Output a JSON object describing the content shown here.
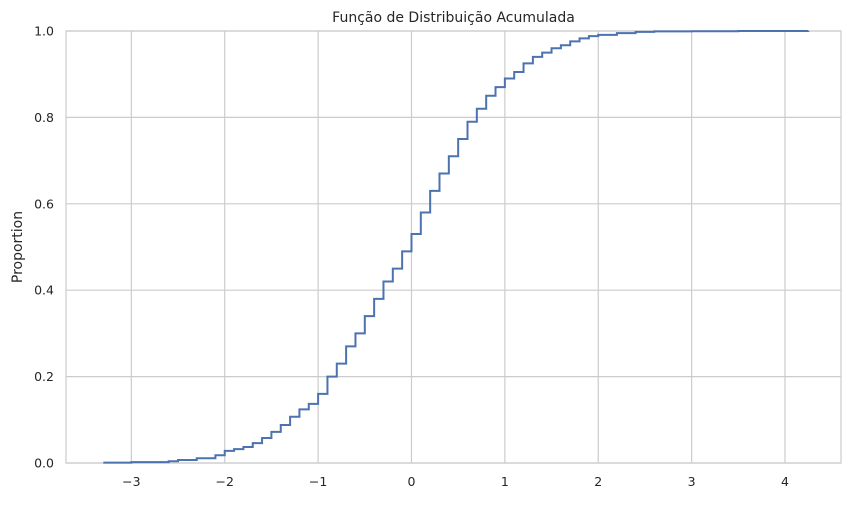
{
  "chart_data": {
    "type": "line",
    "title": "Função de Distribuição Acumulada",
    "xlabel": "",
    "ylabel": "Proportion",
    "xlim": [
      -3.7,
      4.6
    ],
    "ylim": [
      0.0,
      1.0
    ],
    "x_ticks": [
      -3,
      -2,
      -1,
      0,
      1,
      2,
      3,
      4
    ],
    "x_tick_labels": [
      "−3",
      "−2",
      "−1",
      "0",
      "1",
      "2",
      "3",
      "4"
    ],
    "y_ticks": [
      0.0,
      0.2,
      0.4,
      0.6,
      0.8,
      1.0
    ],
    "y_tick_labels": [
      "0.0",
      "0.2",
      "0.4",
      "0.6",
      "0.8",
      "1.0"
    ],
    "grid": true,
    "line_color": "#4c72b0",
    "series": [
      {
        "name": "",
        "x": [
          -3.3,
          -3.0,
          -2.6,
          -2.5,
          -2.3,
          -2.1,
          -2.0,
          -1.9,
          -1.8,
          -1.7,
          -1.6,
          -1.5,
          -1.4,
          -1.3,
          -1.2,
          -1.1,
          -1.0,
          -0.9,
          -0.8,
          -0.7,
          -0.6,
          -0.5,
          -0.4,
          -0.3,
          -0.2,
          -0.1,
          0.0,
          0.1,
          0.2,
          0.3,
          0.4,
          0.5,
          0.6,
          0.7,
          0.8,
          0.9,
          1.0,
          1.1,
          1.2,
          1.3,
          1.4,
          1.5,
          1.6,
          1.7,
          1.8,
          1.9,
          2.0,
          2.2,
          2.4,
          2.6,
          3.0,
          3.5,
          4.25
        ],
        "y": [
          0.001,
          0.002,
          0.004,
          0.007,
          0.011,
          0.018,
          0.028,
          0.032,
          0.037,
          0.046,
          0.058,
          0.072,
          0.088,
          0.107,
          0.124,
          0.137,
          0.16,
          0.2,
          0.23,
          0.27,
          0.3,
          0.34,
          0.38,
          0.42,
          0.45,
          0.49,
          0.53,
          0.58,
          0.63,
          0.67,
          0.71,
          0.75,
          0.79,
          0.82,
          0.85,
          0.87,
          0.89,
          0.905,
          0.925,
          0.94,
          0.95,
          0.96,
          0.967,
          0.976,
          0.983,
          0.988,
          0.991,
          0.995,
          0.998,
          0.999,
          0.9995,
          0.9999,
          1.0
        ]
      }
    ]
  }
}
